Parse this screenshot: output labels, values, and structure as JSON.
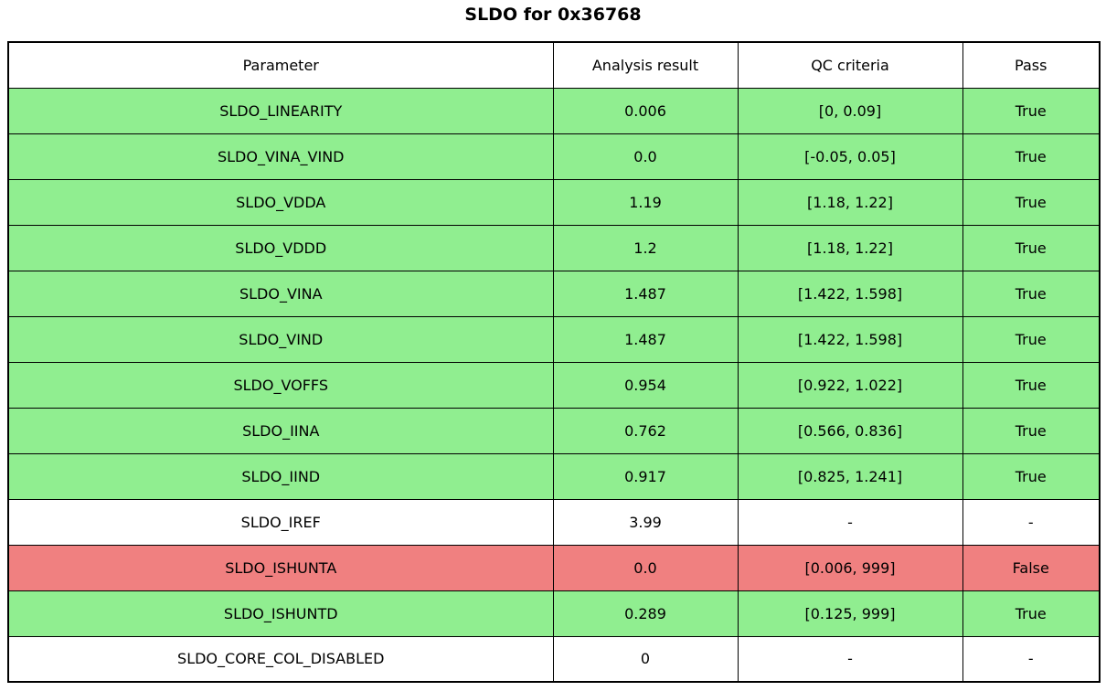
{
  "title": "SLDO for 0x36768",
  "colors": {
    "pass_row": "#90ee90",
    "fail_row": "#f08080",
    "neutral_row": "#ffffff",
    "border": "#000000",
    "text": "#000000"
  },
  "chart_data": {
    "type": "table",
    "title": "SLDO for 0x36768",
    "columns": [
      "Parameter",
      "Analysis result",
      "QC criteria",
      "Pass"
    ],
    "rows": [
      {
        "parameter": "SLDO_LINEARITY",
        "result": "0.006",
        "criteria": "[0, 0.09]",
        "pass": "True",
        "status": "pass"
      },
      {
        "parameter": "SLDO_VINA_VIND",
        "result": "0.0",
        "criteria": "[-0.05, 0.05]",
        "pass": "True",
        "status": "pass"
      },
      {
        "parameter": "SLDO_VDDA",
        "result": "1.19",
        "criteria": "[1.18, 1.22]",
        "pass": "True",
        "status": "pass"
      },
      {
        "parameter": "SLDO_VDDD",
        "result": "1.2",
        "criteria": "[1.18, 1.22]",
        "pass": "True",
        "status": "pass"
      },
      {
        "parameter": "SLDO_VINA",
        "result": "1.487",
        "criteria": "[1.422, 1.598]",
        "pass": "True",
        "status": "pass"
      },
      {
        "parameter": "SLDO_VIND",
        "result": "1.487",
        "criteria": "[1.422, 1.598]",
        "pass": "True",
        "status": "pass"
      },
      {
        "parameter": "SLDO_VOFFS",
        "result": "0.954",
        "criteria": "[0.922, 1.022]",
        "pass": "True",
        "status": "pass"
      },
      {
        "parameter": "SLDO_IINA",
        "result": "0.762",
        "criteria": "[0.566, 0.836]",
        "pass": "True",
        "status": "pass"
      },
      {
        "parameter": "SLDO_IIND",
        "result": "0.917",
        "criteria": "[0.825, 1.241]",
        "pass": "True",
        "status": "pass"
      },
      {
        "parameter": "SLDO_IREF",
        "result": "3.99",
        "criteria": "-",
        "pass": "-",
        "status": "none"
      },
      {
        "parameter": "SLDO_ISHUNTA",
        "result": "0.0",
        "criteria": "[0.006, 999]",
        "pass": "False",
        "status": "fail"
      },
      {
        "parameter": "SLDO_ISHUNTD",
        "result": "0.289",
        "criteria": "[0.125, 999]",
        "pass": "True",
        "status": "pass"
      },
      {
        "parameter": "SLDO_CORE_COL_DISABLED",
        "result": "0",
        "criteria": "-",
        "pass": "-",
        "status": "none"
      }
    ]
  }
}
